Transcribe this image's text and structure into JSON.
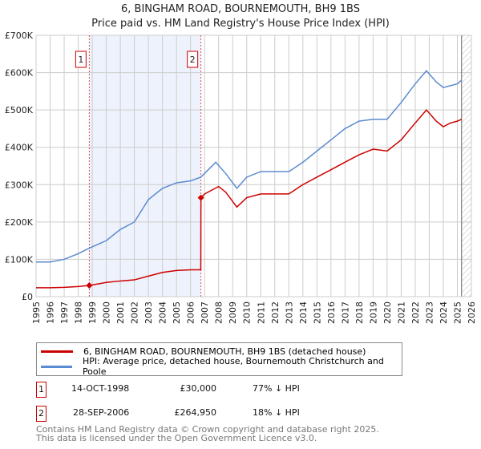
{
  "chart_data": {
    "type": "line",
    "title": "6, BINGHAM ROAD, BOURNEMOUTH, BH9 1BS",
    "subtitle": "Price paid vs. HM Land Registry's House Price Index (HPI)",
    "xlim": [
      1995,
      2026
    ],
    "ylim": [
      0,
      700000
    ],
    "x_ticks": [
      "1995",
      "1996",
      "1997",
      "1998",
      "1999",
      "2000",
      "2001",
      "2002",
      "2003",
      "2004",
      "2005",
      "2006",
      "2007",
      "2008",
      "2009",
      "2010",
      "2011",
      "2012",
      "2013",
      "2014",
      "2015",
      "2016",
      "2017",
      "2018",
      "2019",
      "2020",
      "2021",
      "2022",
      "2023",
      "2024",
      "2025",
      "2026"
    ],
    "y_ticks": [
      {
        "v": 0,
        "label": "£0"
      },
      {
        "v": 100000,
        "label": "£100K"
      },
      {
        "v": 200000,
        "label": "£200K"
      },
      {
        "v": 300000,
        "label": "£300K"
      },
      {
        "v": 400000,
        "label": "£400K"
      },
      {
        "v": 500000,
        "label": "£500K"
      },
      {
        "v": 600000,
        "label": "£600K"
      },
      {
        "v": 700000,
        "label": "£700K"
      }
    ],
    "series": [
      {
        "name": "6, BINGHAM ROAD, BOURNEMOUTH, BH9 1BS (detached house)",
        "color": "#cc0000",
        "x": [
          1995,
          1996,
          1997,
          1998,
          1998.79,
          2000,
          2001,
          2002,
          2003,
          2004,
          2005,
          2006,
          2006.73,
          2006.74,
          2007,
          2007.5,
          2008,
          2008.5,
          2009.3,
          2010,
          2011,
          2012,
          2013,
          2014,
          2015,
          2016,
          2017,
          2018,
          2019,
          2020,
          2021,
          2022,
          2022.8,
          2023.5,
          2024,
          2024.5,
          2025,
          2025.3
        ],
        "y": [
          24000,
          24000,
          25000,
          27000,
          30000,
          38000,
          42000,
          45000,
          55000,
          65000,
          70000,
          72000,
          72000,
          264950,
          275000,
          285000,
          295000,
          280000,
          240000,
          265000,
          275000,
          275000,
          275000,
          300000,
          320000,
          340000,
          360000,
          380000,
          395000,
          390000,
          420000,
          465000,
          500000,
          470000,
          455000,
          465000,
          470000,
          475000
        ]
      },
      {
        "name": "HPI: Average price, detached house, Bournemouth Christchurch and Poole",
        "color": "#5b8bd0",
        "x": [
          1995,
          1996,
          1997,
          1998,
          1998.79,
          2000,
          2001,
          2002,
          2003,
          2004,
          2005,
          2006,
          2006.73,
          2007,
          2007.8,
          2008.5,
          2009.3,
          2010,
          2011,
          2012,
          2013,
          2014,
          2015,
          2016,
          2017,
          2018,
          2019,
          2020,
          2021,
          2022,
          2022.8,
          2023.5,
          2024,
          2024.5,
          2025,
          2025.3
        ],
        "y": [
          93000,
          93000,
          100000,
          115000,
          130000,
          150000,
          180000,
          200000,
          260000,
          290000,
          305000,
          310000,
          320000,
          330000,
          360000,
          330000,
          290000,
          320000,
          335000,
          335000,
          335000,
          360000,
          390000,
          420000,
          450000,
          470000,
          475000,
          475000,
          520000,
          570000,
          605000,
          575000,
          560000,
          565000,
          570000,
          580000
        ]
      }
    ],
    "sales": [
      {
        "n": "1",
        "x": 1998.79,
        "y": 30000
      },
      {
        "n": "2",
        "x": 2006.74,
        "y": 264950
      }
    ],
    "forecast_start": 2025.3
  },
  "legend": {
    "red": "6, BINGHAM ROAD, BOURNEMOUTH, BH9 1BS (detached house)",
    "blue": "HPI: Average price, detached house, Bournemouth Christchurch and Poole"
  },
  "transactions": [
    {
      "n": "1",
      "date": "14-OCT-1998",
      "price": "£30,000",
      "hpi": "77% ↓ HPI"
    },
    {
      "n": "2",
      "date": "28-SEP-2006",
      "price": "£264,950",
      "hpi": "18% ↓ HPI"
    }
  ],
  "footer": {
    "line1": "Contains HM Land Registry data © Crown copyright and database right 2025.",
    "line2": "This data is licensed under the Open Government Licence v3.0."
  }
}
